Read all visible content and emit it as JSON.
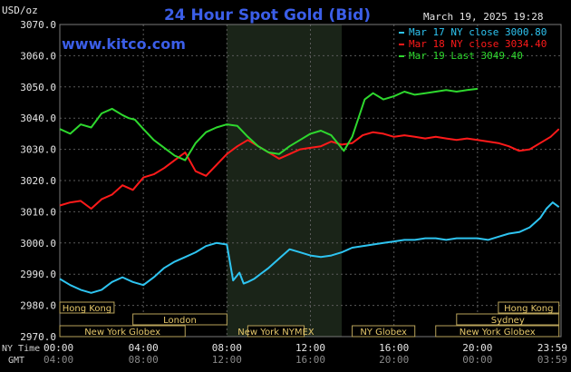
{
  "chart_data": {
    "type": "line",
    "title": "24 Hour Spot Gold (Bid)",
    "website": "www.kitco.com",
    "timestamp": "March 19, 2025 19:28",
    "ylabel": "USD/oz",
    "ylim": [
      2970,
      3070
    ],
    "yticks": [
      "3070.0",
      "3060.0",
      "3050.0",
      "3040.0",
      "3030.0",
      "3020.0",
      "3010.0",
      "3000.0",
      "2990.0",
      "2980.0",
      "2970.0"
    ],
    "xlim": [
      0,
      24
    ],
    "ny_time_label": "NY Time",
    "gmt_label": "GMT",
    "xticks_ny": [
      "00:00",
      "04:00",
      "08:00",
      "12:00",
      "16:00",
      "20:00",
      "23:59"
    ],
    "xticks_gmt": [
      "04:00",
      "08:00",
      "12:00",
      "16:00",
      "20:00",
      "00:00",
      "03:59"
    ],
    "grid": true,
    "legend_position": "top-right",
    "highlight_session": [
      8.0,
      13.5
    ],
    "sessions": [
      {
        "label": "Hong Kong",
        "start": 0.0,
        "end": 2.6
      },
      {
        "label": "London",
        "start": 3.5,
        "end": 8.0
      },
      {
        "label": "New York Globex",
        "start": 0.0,
        "end": 6.0
      },
      {
        "label": "New York NYMEX",
        "start": 9.0,
        "end": 11.7
      },
      {
        "label": "NY Globex",
        "start": 14.0,
        "end": 17.0
      },
      {
        "label": "Hong Kong",
        "start": 21.0,
        "end": 23.9
      },
      {
        "label": "Sydney",
        "start": 19.0,
        "end": 23.9
      },
      {
        "label": "New York Globex",
        "start": 18.0,
        "end": 23.9
      }
    ],
    "series": [
      {
        "name": "Mar 17 NY close 3000.80",
        "color": "#2ec4f1",
        "x": [
          0,
          0.5,
          1,
          1.5,
          2,
          2.5,
          3,
          3.5,
          4,
          4.5,
          5,
          5.5,
          6,
          6.5,
          7,
          7.5,
          8,
          8.3,
          8.6,
          8.8,
          9,
          9.3,
          9.6,
          10,
          10.5,
          11,
          11.5,
          12,
          12.5,
          13,
          13.5,
          14,
          14.5,
          15,
          15.5,
          16,
          16.5,
          17,
          17.5,
          18,
          18.5,
          19,
          19.5,
          20,
          20.5,
          21,
          21.5,
          22,
          22.5,
          23,
          23.3,
          23.6,
          23.9
        ],
        "values": [
          2988.5,
          2986.5,
          2985.0,
          2984.0,
          2985.0,
          2987.5,
          2989.0,
          2987.5,
          2986.5,
          2989.0,
          2992.0,
          2994.0,
          2995.5,
          2997.0,
          2999.0,
          3000.0,
          2999.5,
          2988.0,
          2990.5,
          2987.0,
          2987.5,
          2988.5,
          2990.0,
          2992.0,
          2995.0,
          2998.0,
          2997.0,
          2996.0,
          2995.5,
          2996.0,
          2997.0,
          2998.5,
          2999.0,
          2999.5,
          3000.0,
          3000.5,
          3001.0,
          3001.0,
          3001.5,
          3001.5,
          3001.0,
          3001.5,
          3001.5,
          3001.5,
          3001.0,
          3002.0,
          3003.0,
          3003.5,
          3005.0,
          3008.0,
          3011.0,
          3013.0,
          3011.5
        ]
      },
      {
        "name": "Mar 18 NY close 3034.40",
        "color": "#ff1a1a",
        "x": [
          0,
          0.5,
          1,
          1.5,
          2,
          2.5,
          3,
          3.5,
          4,
          4.5,
          5,
          5.5,
          6,
          6.5,
          7,
          7.5,
          8,
          8.5,
          9,
          9.5,
          10,
          10.5,
          11,
          11.5,
          12,
          12.5,
          13,
          13.5,
          14,
          14.5,
          15,
          15.5,
          16,
          16.5,
          17,
          17.5,
          18,
          18.5,
          19,
          19.5,
          20,
          20.5,
          21,
          21.5,
          22,
          22.5,
          23,
          23.5,
          23.9
        ],
        "values": [
          3012.0,
          3013.0,
          3013.5,
          3011.0,
          3014.0,
          3015.5,
          3018.5,
          3017.0,
          3021.0,
          3022.0,
          3024.0,
          3026.5,
          3029.0,
          3023.0,
          3021.5,
          3025.0,
          3028.5,
          3031.0,
          3033.0,
          3031.0,
          3029.0,
          3027.0,
          3028.5,
          3030.0,
          3030.5,
          3031.0,
          3032.5,
          3031.5,
          3032.0,
          3034.5,
          3035.5,
          3035.0,
          3034.0,
          3034.5,
          3034.0,
          3033.5,
          3034.0,
          3033.5,
          3033.0,
          3033.5,
          3033.0,
          3032.5,
          3032.0,
          3031.0,
          3029.5,
          3030.0,
          3032.0,
          3034.0,
          3036.5
        ]
      },
      {
        "name": "Mar 19 Last 3049.40",
        "color": "#2ed82e",
        "x": [
          0,
          0.5,
          1,
          1.5,
          2,
          2.5,
          3,
          3.3,
          3.6,
          4,
          4.5,
          5,
          5.5,
          6,
          6.5,
          7,
          7.5,
          8,
          8.5,
          9,
          9.5,
          10,
          10.5,
          11,
          11.5,
          12,
          12.5,
          13,
          13.3,
          13.6,
          14,
          14.3,
          14.6,
          15,
          15.5,
          16,
          16.5,
          17,
          17.5,
          18,
          18.5,
          19,
          19.5,
          20
        ],
        "values": [
          3036.5,
          3035.0,
          3038.0,
          3037.0,
          3041.5,
          3043.0,
          3041.0,
          3040.0,
          3039.5,
          3036.5,
          3033.0,
          3030.5,
          3028.0,
          3026.5,
          3032.0,
          3035.5,
          3037.0,
          3038.0,
          3037.5,
          3034.0,
          3031.0,
          3029.0,
          3028.5,
          3031.0,
          3033.0,
          3035.0,
          3036.0,
          3034.5,
          3032.0,
          3029.5,
          3034.0,
          3040.0,
          3046.0,
          3048.0,
          3046.0,
          3047.0,
          3048.5,
          3047.5,
          3048.0,
          3048.5,
          3049.0,
          3048.5,
          3049.0,
          3049.4
        ]
      }
    ]
  }
}
